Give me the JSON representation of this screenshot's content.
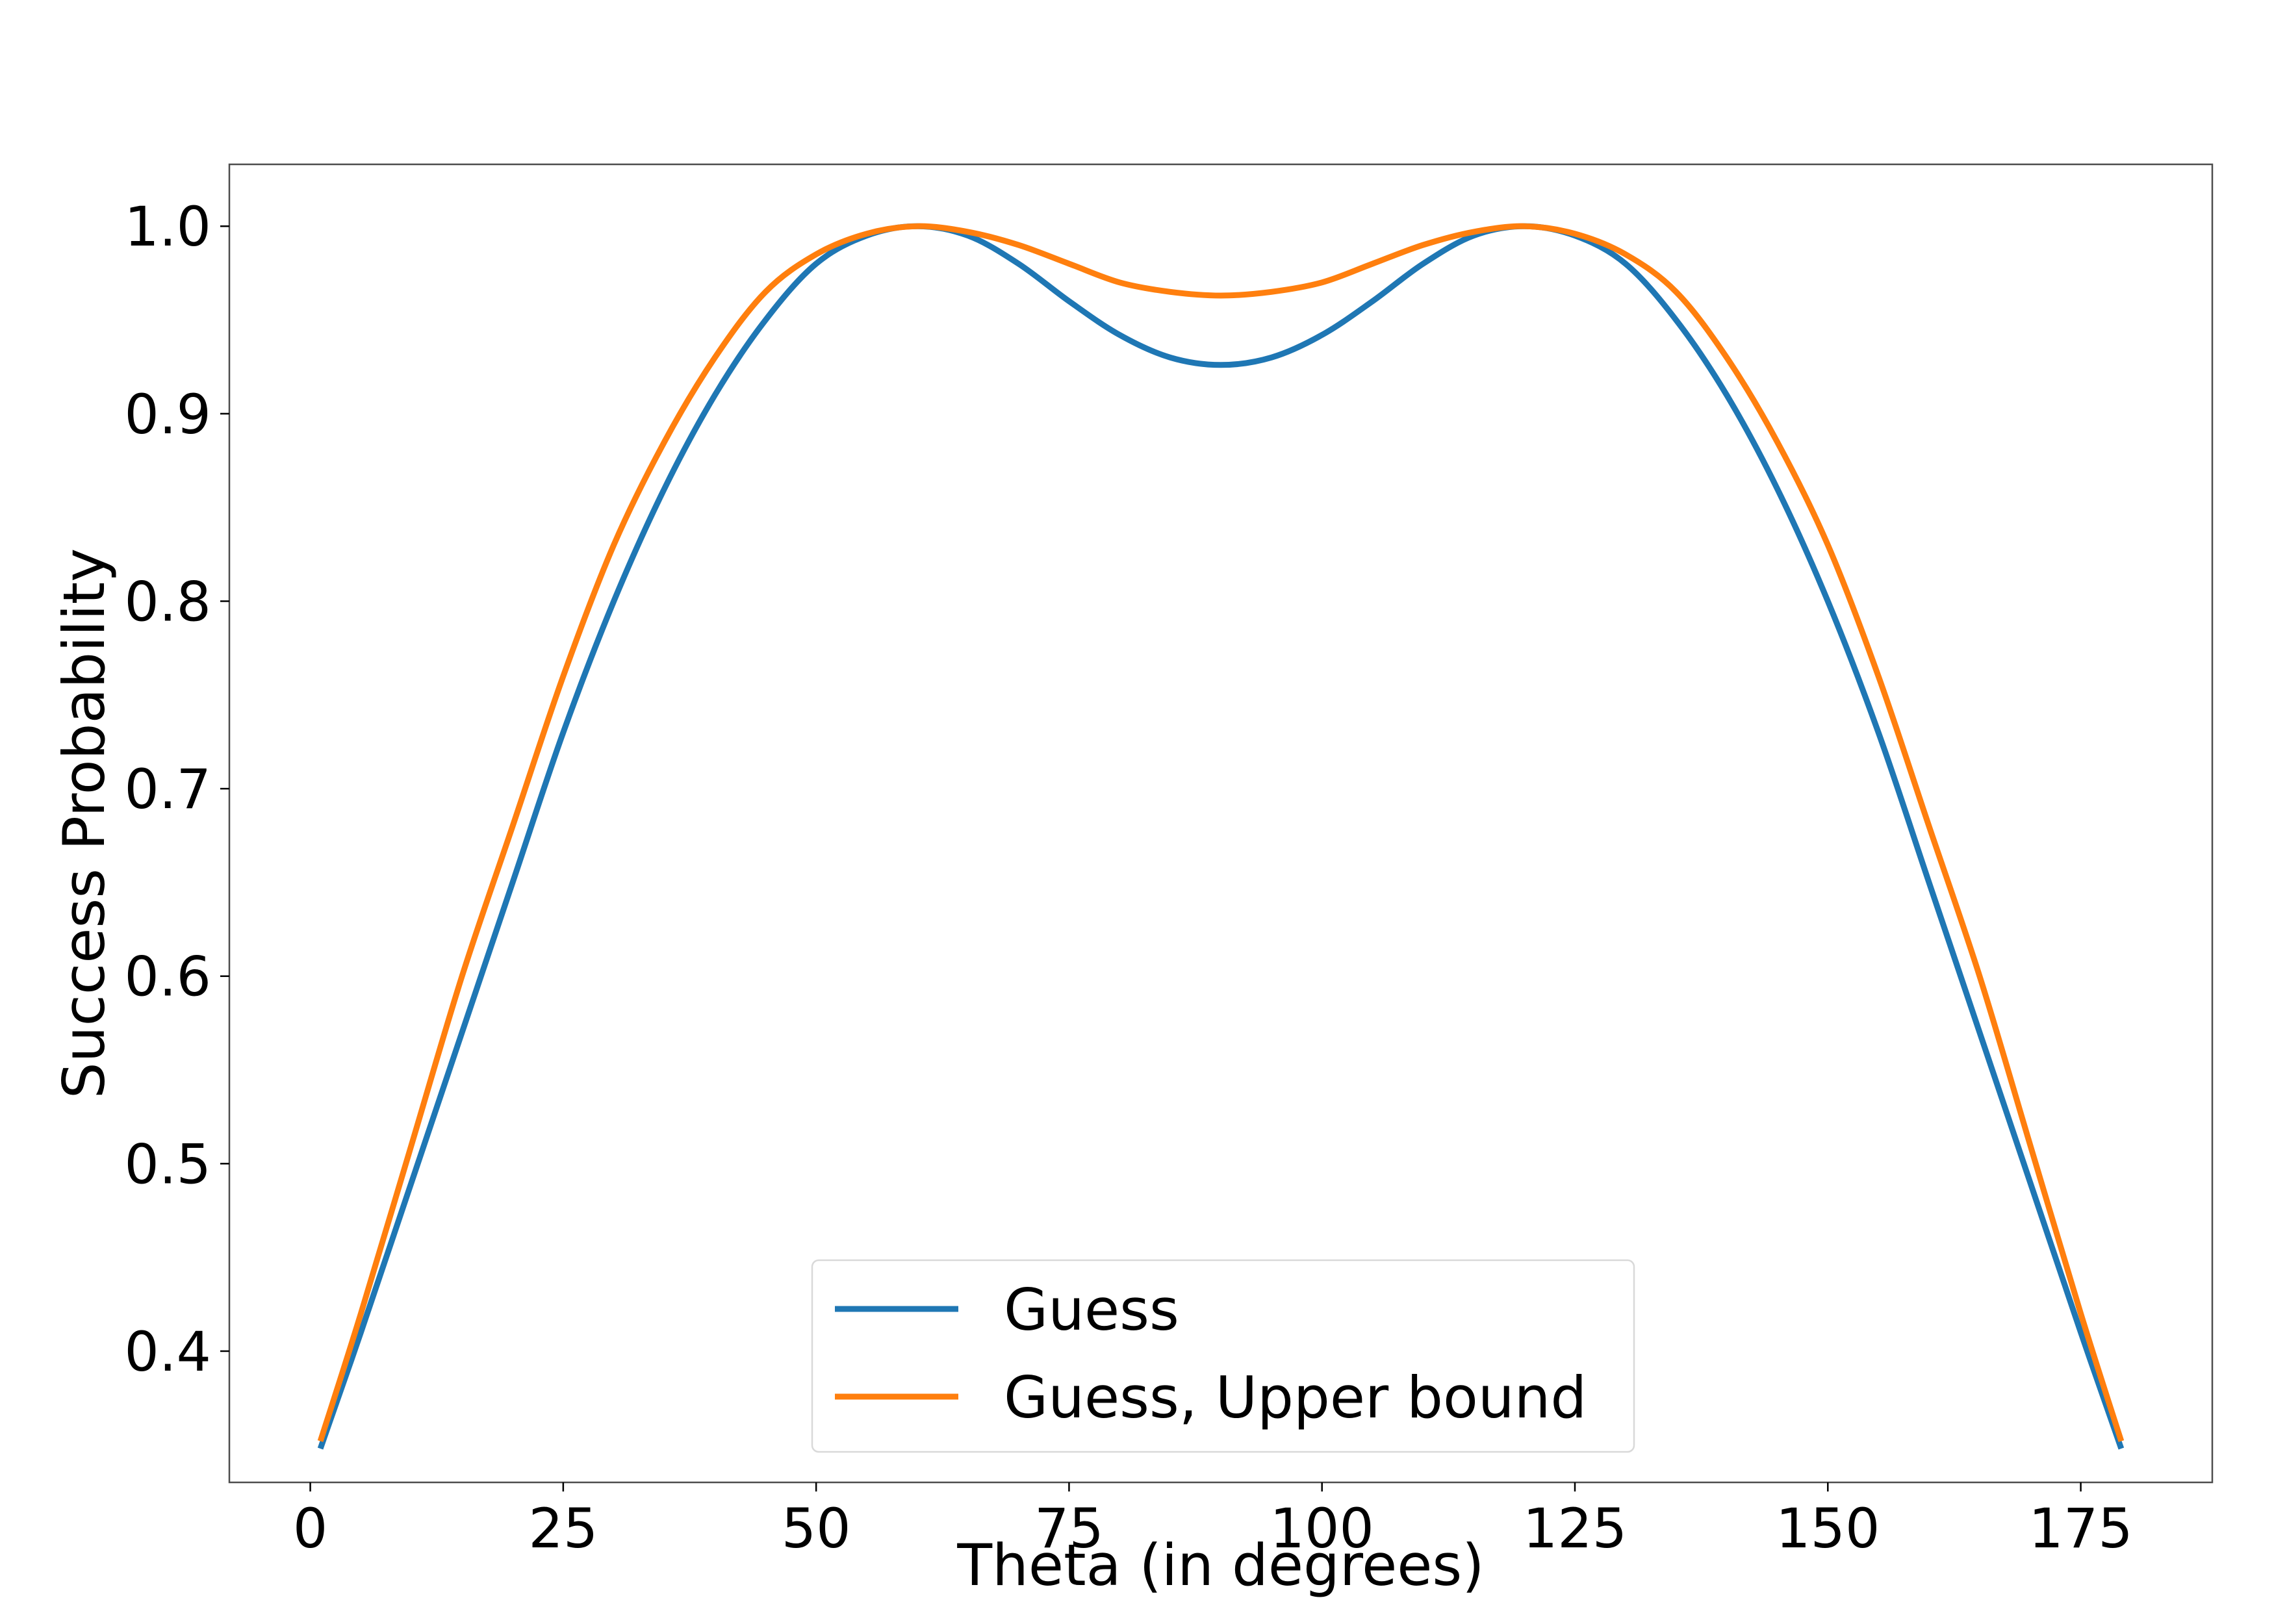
{
  "chart_data": {
    "type": "line",
    "title": "",
    "xlabel": "Theta (in degrees)",
    "ylabel": "Success Probability",
    "xlim": [
      -8,
      188
    ],
    "ylim": [
      0.33,
      1.033
    ],
    "xticks": [
      0,
      25,
      50,
      75,
      100,
      125,
      150,
      175
    ],
    "xtick_labels": [
      "0",
      "25",
      "50",
      "75",
      "100",
      "125",
      "150",
      "175"
    ],
    "yticks": [
      0.4,
      0.5,
      0.6,
      0.7,
      0.8,
      0.9,
      1.0
    ],
    "ytick_labels": [
      "0.4",
      "0.5",
      "0.6",
      "0.7",
      "0.8",
      "0.9",
      "1.0"
    ],
    "grid": false,
    "legend_position": "lower center",
    "series": [
      {
        "name": "Guess",
        "color": "#1f77b4",
        "x": [
          1,
          5,
          10,
          15,
          20,
          25,
          30,
          35,
          40,
          45,
          50,
          55,
          60,
          65,
          70,
          75,
          80,
          85,
          90,
          95,
          100,
          105,
          110,
          115,
          120,
          125,
          130,
          135,
          140,
          145,
          150,
          155,
          160,
          165,
          170,
          175,
          179
        ],
        "y": [
          0.348,
          0.41,
          0.49,
          0.57,
          0.65,
          0.73,
          0.8,
          0.86,
          0.91,
          0.95,
          0.98,
          0.995,
          1.0,
          0.995,
          0.98,
          0.96,
          0.942,
          0.93,
          0.926,
          0.93,
          0.942,
          0.96,
          0.98,
          0.995,
          1.0,
          0.995,
          0.98,
          0.95,
          0.91,
          0.86,
          0.8,
          0.73,
          0.65,
          0.57,
          0.49,
          0.41,
          0.348
        ]
      },
      {
        "name": "Guess, Upper bound",
        "color": "#ff7f0e",
        "x": [
          1,
          5,
          10,
          15,
          20,
          25,
          30,
          35,
          40,
          45,
          50,
          55,
          60,
          65,
          70,
          75,
          80,
          85,
          90,
          95,
          100,
          105,
          110,
          115,
          120,
          125,
          130,
          135,
          140,
          145,
          150,
          155,
          160,
          165,
          170,
          175,
          179
        ],
        "y": [
          0.352,
          0.42,
          0.51,
          0.6,
          0.68,
          0.76,
          0.83,
          0.885,
          0.93,
          0.965,
          0.985,
          0.996,
          1.0,
          0.997,
          0.99,
          0.98,
          0.97,
          0.965,
          0.963,
          0.965,
          0.97,
          0.98,
          0.99,
          0.997,
          1.0,
          0.996,
          0.985,
          0.965,
          0.93,
          0.885,
          0.83,
          0.76,
          0.68,
          0.6,
          0.51,
          0.42,
          0.352
        ]
      }
    ]
  }
}
